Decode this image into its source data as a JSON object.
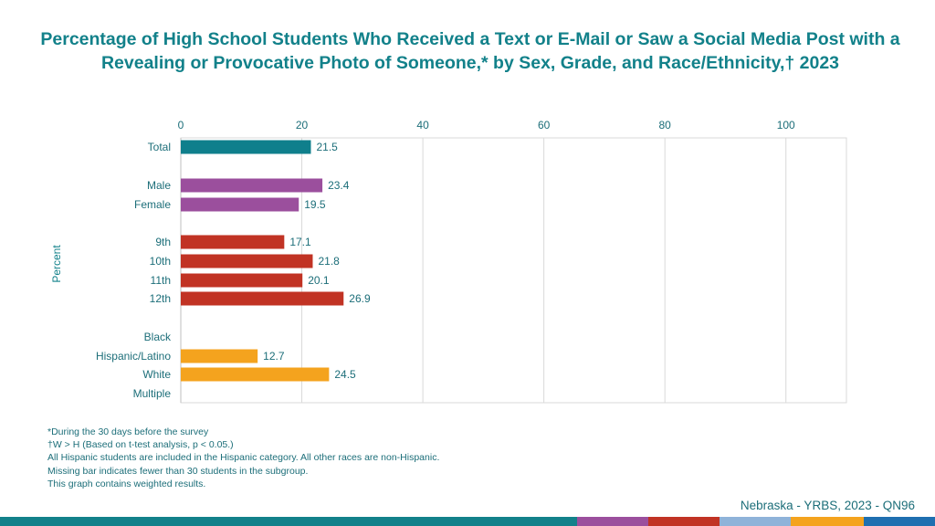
{
  "title": "Percentage of High School Students Who Received a Text or E-Mail or Saw a Social Media Post with a Revealing or Provocative Photo of Someone,* by Sex, Grade, and Race/Ethnicity,† 2023",
  "colors": {
    "title": "#12818a",
    "total": "#0f7f8c",
    "sex": "#9b4f9d",
    "grade": "#c13324",
    "race": "#f4a31e",
    "grid": "#d9d9d9",
    "text": "#1c6e79"
  },
  "chart_data": {
    "type": "bar",
    "orientation": "horizontal",
    "title": "Percentage of High School Students Who Received a Text or E-Mail or Saw a Social Media Post with a Revealing or Provocative Photo of Someone,* by Sex, Grade, and Race/Ethnicity,† 2023",
    "xlabel": "",
    "ylabel": "Percent",
    "xlim": [
      0,
      110
    ],
    "xticks": [
      0,
      20,
      40,
      60,
      80,
      100
    ],
    "grid": true,
    "categories": [
      "Total",
      "Male",
      "Female",
      "9th",
      "10th",
      "11th",
      "12th",
      "Black",
      "Hispanic/Latino",
      "White",
      "Multiple"
    ],
    "values": [
      21.5,
      23.4,
      19.5,
      17.1,
      21.8,
      20.1,
      26.9,
      null,
      12.7,
      24.5,
      null
    ],
    "value_labels": [
      "21.5",
      "23.4",
      "19.5",
      "17.1",
      "21.8",
      "20.1",
      "26.9",
      "",
      "12.7",
      "24.5",
      ""
    ],
    "groups": [
      "total",
      "sex",
      "sex",
      "grade",
      "grade",
      "grade",
      "grade",
      "race",
      "race",
      "race",
      "race"
    ]
  },
  "footnotes": [
    "*During the 30 days before the survey",
    "†W > H (Based on t-test analysis, p < 0.05.)",
    "All Hispanic students are included in the Hispanic category.  All other races are non-Hispanic.",
    "Missing bar indicates fewer than 30 students in the subgroup.",
    "This graph contains weighted results."
  ],
  "source": "Nebraska - YRBS, 2023 - QN96",
  "bottom_band_colors": [
    "#12818a",
    "#9b4f9d",
    "#c13324",
    "#8fb3d9",
    "#f4a31e",
    "#1f6fb0"
  ]
}
